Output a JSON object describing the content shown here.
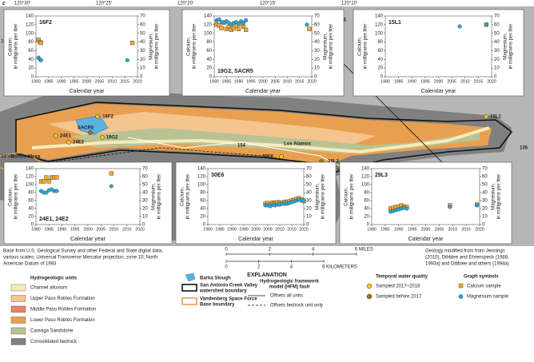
{
  "figure_label": "c",
  "longitudes": [
    "120°30'",
    "120°25'",
    "120°20'",
    "120°15'",
    "120°10'"
  ],
  "latitudes": [
    "34°50'",
    "34°45'"
  ],
  "map_labels": [
    "16F2",
    "24E1",
    "24E2",
    "SACR5",
    "19G2",
    "30E6",
    "29L3",
    "15L1",
    "Burton Mesa",
    "Los Alamos",
    "154",
    "176",
    "135"
  ],
  "inset_axes": {
    "ylim": [
      0,
      140
    ],
    "yticks": [
      0,
      20,
      40,
      60,
      80,
      100,
      120,
      140
    ],
    "y2lim": [
      0,
      70
    ],
    "y2ticks": [
      0,
      10,
      20,
      30,
      40,
      50,
      60,
      70
    ],
    "xlim": [
      1980,
      2020
    ],
    "xticks": [
      1980,
      1985,
      1990,
      1995,
      2000,
      2005,
      2010,
      2015,
      2020
    ],
    "ylabel": [
      "Calcium,",
      "in milligrams per liter"
    ],
    "y2label": [
      "Magnesium,",
      "in milligrams per liter"
    ],
    "xlabel": "Calendar year"
  },
  "insets": [
    {
      "type": "scatter",
      "title": "16F2",
      "series": [
        {
          "color": "#f0a830",
          "marker": "square",
          "x": [
            1981,
            1981.5,
            1982,
            2018
          ],
          "values": [
            85,
            80,
            78,
            78
          ]
        },
        {
          "color": "#29a8d8",
          "marker": "circle",
          "axis": "y2",
          "x": [
            1981,
            1981.5,
            1982,
            2016
          ],
          "values": [
            22,
            20,
            19,
            19
          ]
        }
      ]
    },
    {
      "type": "scatter",
      "title": "19G2, SACR5",
      "series": [
        {
          "color": "#f0a830",
          "marker": "square",
          "x": [
            1981,
            1982,
            1983,
            1984,
            1985,
            1986,
            1987,
            1988,
            1989,
            1990,
            1991,
            1992,
            1993,
            2019
          ],
          "values": [
            120,
            118,
            112,
            125,
            110,
            115,
            108,
            112,
            118,
            110,
            122,
            115,
            108,
            110
          ]
        },
        {
          "color": "#29a8d8",
          "marker": "circle",
          "axis": "y2",
          "x": [
            1981,
            1982,
            1983,
            1984,
            1985,
            1986,
            1987,
            1988,
            1989,
            1990,
            1991,
            1992,
            1993,
            2018
          ],
          "values": [
            65,
            66,
            63,
            62,
            64,
            62,
            60,
            62,
            63,
            61,
            64,
            62,
            65,
            60
          ]
        }
      ]
    },
    {
      "type": "scatter",
      "title": "15L1",
      "series": [
        {
          "color": "#f0a830",
          "marker": "square",
          "x": [
            2018
          ],
          "values": [
            120
          ]
        },
        {
          "color": "#29a8d8",
          "marker": "circle",
          "axis": "y2",
          "x": [
            2008,
            2018
          ],
          "values": [
            58,
            60
          ]
        }
      ]
    },
    {
      "type": "scatter",
      "title": "24E1, 24E2",
      "series": [
        {
          "color": "#f0a830",
          "marker": "square",
          "x": [
            1982,
            1983,
            1984,
            1985,
            1986,
            1987,
            1988,
            2009
          ],
          "values": [
            108,
            108,
            118,
            108,
            118,
            118,
            118,
            128
          ]
        },
        {
          "color": "#29a8d8",
          "marker": "circle",
          "axis": "y2",
          "x": [
            1982,
            1983,
            1984,
            1985,
            1986,
            1987,
            1988,
            2009
          ],
          "values": [
            42,
            40,
            40,
            43,
            44,
            42,
            42,
            48
          ]
        }
      ]
    },
    {
      "type": "scatter",
      "title": "30E6",
      "series": [
        {
          "color": "#f0a830",
          "marker": "square",
          "x": [
            2004,
            2005,
            2006,
            2007,
            2008,
            2009,
            2010,
            2011,
            2012,
            2013,
            2014,
            2015,
            2016,
            2017,
            2018,
            2019,
            2020
          ],
          "values": [
            52,
            54,
            50,
            55,
            53,
            56,
            54,
            55,
            57,
            56,
            58,
            60,
            62,
            64,
            66,
            62,
            60
          ]
        },
        {
          "color": "#29a8d8",
          "marker": "circle",
          "axis": "y2",
          "x": [
            2004,
            2005,
            2006,
            2007,
            2008,
            2009,
            2010,
            2011,
            2012,
            2013,
            2014,
            2015,
            2016,
            2017,
            2018,
            2019,
            2020
          ],
          "values": [
            24,
            24,
            23,
            25,
            24,
            25,
            25,
            26,
            26,
            26,
            27,
            28,
            29,
            30,
            31,
            30,
            29
          ]
        }
      ]
    },
    {
      "type": "scatter",
      "title": "29L3",
      "series": [
        {
          "color": "#f0a830",
          "marker": "square",
          "x": [
            1987,
            1988,
            1989,
            1990,
            1991,
            1992,
            1993,
            2009,
            2019
          ],
          "values": [
            40,
            42,
            44,
            45,
            48,
            45,
            44,
            48,
            50
          ]
        },
        {
          "color": "#29a8d8",
          "marker": "circle",
          "axis": "y2",
          "x": [
            1987,
            1988,
            1989,
            1990,
            1991,
            1992,
            1993,
            2009,
            2019
          ],
          "values": [
            16,
            17,
            18,
            19,
            20,
            21,
            20,
            22,
            24
          ]
        }
      ]
    }
  ],
  "base_credit": [
    "Base from U.S. Geological Survey and other Federal and State digital data,",
    "various scales; Universal Transverse Mercator projection, zone 10; North",
    "American Datum of 1983"
  ],
  "geology_credit": [
    "Geology modified from from Jennings",
    "(2010), Dibblee and Ehrenspeck (1988,",
    "1993a) and Dibblee and others (1994a)"
  ],
  "scale": {
    "miles": [
      "0",
      "2",
      "4",
      "6 MILES"
    ],
    "kilometers": [
      "0",
      "2",
      "4",
      "6 KILOMETERS"
    ]
  },
  "explanation": {
    "title": "EXPLANATION",
    "units_title": "Hydrogeologic units",
    "units": [
      {
        "label": "Channel alluvium",
        "color": "#f7ebb8"
      },
      {
        "label": "Upper Paso Robles Formation",
        "color": "#f4c58e"
      },
      {
        "label": "Middle Paso Robles Formation",
        "color": "#e8826a"
      },
      {
        "label": "Lower Paso Robles Formation",
        "color": "#e8a050"
      },
      {
        "label": "Careaga Sandstone",
        "color": "#b9c294"
      },
      {
        "label": "Consolidated bedrock",
        "color": "#808080"
      }
    ],
    "slough": "Barka Slough",
    "watershed": [
      "San Antonio Creek Valley",
      "watershed boundary"
    ],
    "base": [
      "Vandenberg Space Force",
      "Base boundary"
    ],
    "fault_title": [
      "Hydrogeologic framework",
      "model (HFM) fault"
    ],
    "faults": [
      "Offsets all units",
      "Offsets bedrock unit only"
    ],
    "wq_title": "Temporal water quality",
    "wq": [
      {
        "label": "Sampled 2017–2018",
        "color": "#f5c518"
      },
      {
        "label": "Sampled before 2017",
        "color": "#9a7420"
      }
    ],
    "graph_title": "Graph symbols",
    "graph": [
      "Calcium sample",
      "Magnesium sample"
    ]
  }
}
